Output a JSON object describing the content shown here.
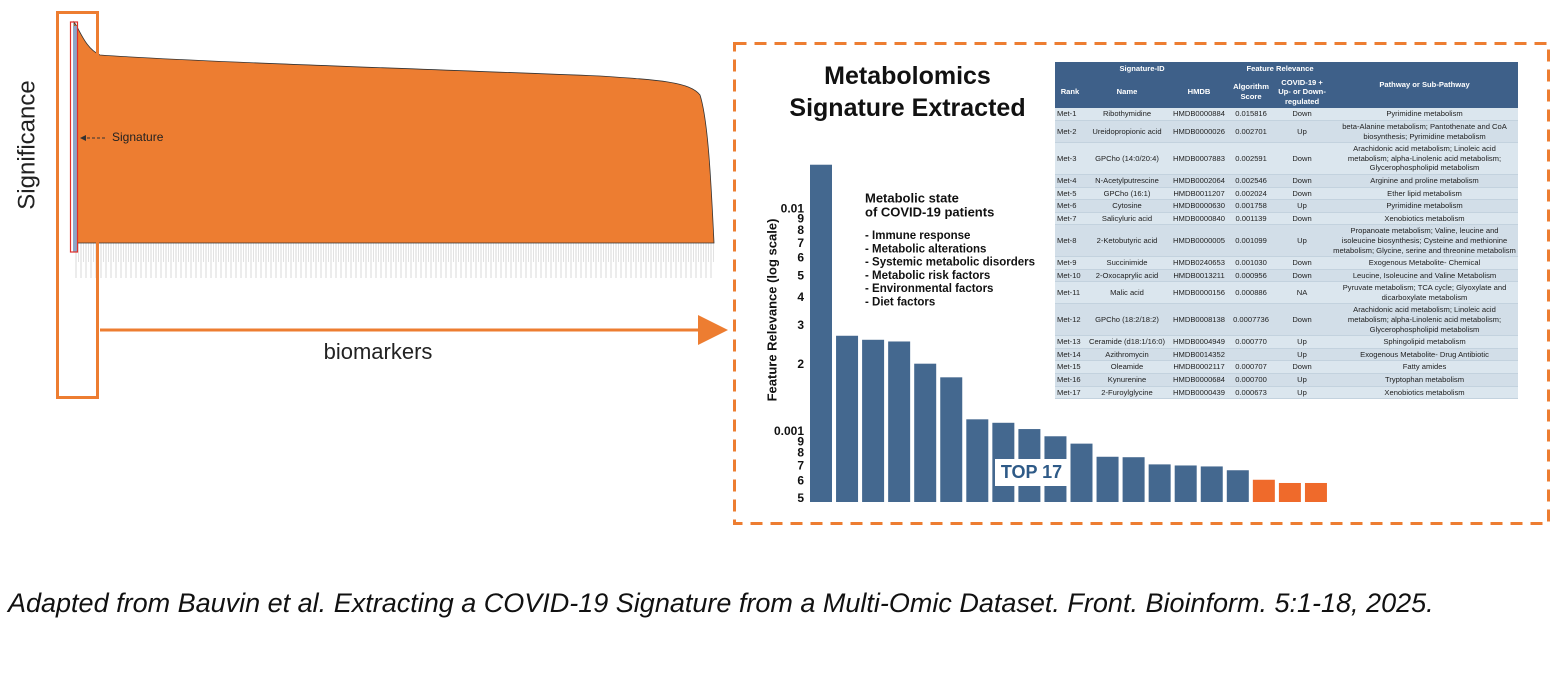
{
  "overview": {
    "y_label": "Significance",
    "x_label": "biomarkers",
    "annotation": "Signature"
  },
  "chart_data": {
    "type": "bar",
    "title": "Metabolomics Signature Extracted",
    "y_label": "Feature Relevance (log scale)",
    "log_scale": true,
    "values": [
      0.015816,
      0.002701,
      0.002591,
      0.002546,
      0.002024,
      0.001758,
      0.001139,
      0.001099,
      0.00103,
      0.000956,
      0.000886,
      0.0007736,
      0.00077,
      0.000715,
      0.000707,
      0.0007,
      0.000673,
      0.00061,
      0.00059,
      0.00059
    ],
    "colors": [
      "#44688f",
      "#44688f",
      "#44688f",
      "#44688f",
      "#44688f",
      "#44688f",
      "#44688f",
      "#44688f",
      "#44688f",
      "#44688f",
      "#44688f",
      "#44688f",
      "#44688f",
      "#44688f",
      "#44688f",
      "#44688f",
      "#44688f",
      "#ef6a2b",
      "#ef6a2b",
      "#ef6a2b"
    ],
    "ylim": [
      0.0005,
      0.02
    ],
    "yticks": [
      0.01,
      {
        "value": 0.009,
        "label": "9"
      },
      {
        "value": 0.008,
        "label": "8"
      },
      {
        "value": 0.007,
        "label": "7"
      },
      {
        "value": 0.006,
        "label": "6"
      },
      {
        "value": 0.005,
        "label": "5"
      },
      {
        "value": 0.004,
        "label": "4"
      },
      {
        "value": 0.003,
        "label": "3"
      },
      {
        "value": 0.002,
        "label": "2"
      },
      0.001,
      {
        "value": 0.0009,
        "label": "9"
      },
      {
        "value": 0.0008,
        "label": "8"
      },
      {
        "value": 0.0007,
        "label": "7"
      },
      {
        "value": 0.0006,
        "label": "6"
      },
      {
        "value": 0.0005,
        "label": "5"
      }
    ],
    "annotation_title": [
      "Metabolic state",
      "of COVID-19 patients"
    ],
    "annotation_items": [
      "- Immune response",
      "- Metabolic alterations",
      "- Systemic metabolic disorders",
      "- Metabolic risk factors",
      "- Environmental factors",
      "- Diet factors"
    ],
    "highlight_label": "TOP 17"
  },
  "table": {
    "group_header": [
      "Signature-ID",
      "Feature Relevance",
      "Pathway or Sub-Pathway"
    ],
    "header": [
      "Rank",
      "Name",
      "HMDB",
      "Algorithm Score",
      "COVID-19 + Up- or Down-regulated"
    ],
    "rows": [
      [
        "Met-1",
        "Ribothymidine",
        "HMDB0000884",
        "0.015816",
        "Down",
        "Pyrimidine metabolism"
      ],
      [
        "Met-2",
        "Ureidopropionic acid",
        "HMDB0000026",
        "0.002701",
        "Up",
        "beta-Alanine metabolism; Pantothenate and CoA biosynthesis; Pyrimidine metabolism"
      ],
      [
        "Met-3",
        "GPCho (14:0/20:4)",
        "HMDB0007883",
        "0.002591",
        "Down",
        "Arachidonic acid metabolism; Linoleic acid metabolism; alpha-Linolenic acid metabolism; Glycerophospholipid metabolism"
      ],
      [
        "Met-4",
        "N-Acetylputrescine",
        "HMDB0002064",
        "0.002546",
        "Down",
        "Arginine and proline metabolism"
      ],
      [
        "Met-5",
        "GPCho (16:1)",
        "HMDB0011207",
        "0.002024",
        "Down",
        "Ether lipid metabolism"
      ],
      [
        "Met-6",
        "Cytosine",
        "HMDB0000630",
        "0.001758",
        "Up",
        "Pyrimidine metabolism"
      ],
      [
        "Met-7",
        "Salicyluric acid",
        "HMDB0000840",
        "0.001139",
        "Down",
        "Xenobiotics metabolism"
      ],
      [
        "Met-8",
        "2-Ketobutyric acid",
        "HMDB0000005",
        "0.001099",
        "Up",
        "Propanoate metabolism; Valine, leucine and isoleucine biosynthesis; Cysteine and methionine metabolism; Glycine, serine and threonine metabolism"
      ],
      [
        "Met-9",
        "Succinimide",
        "HMDB0240653",
        "0.001030",
        "Down",
        "Exogenous Metabolite- Chemical"
      ],
      [
        "Met-10",
        "2-Oxocaprylic acid",
        "HMDB0013211",
        "0.000956",
        "Down",
        "Leucine, Isoleucine and Valine Metabolism"
      ],
      [
        "Met-11",
        "Malic acid",
        "HMDB0000156",
        "0.000886",
        "NA",
        "Pyruvate metabolism; TCA cycle; Glyoxylate and dicarboxylate metabolism"
      ],
      [
        "Met-12",
        "GPCho (18:2/18:2)",
        "HMDB0008138",
        "0.0007736",
        "Down",
        "Arachidonic acid metabolism; Linoleic acid metabolism; alpha-Linolenic acid metabolism; Glycerophospholipid metabolism"
      ],
      [
        "Met-13",
        "Ceramide (d18:1/16:0)",
        "HMDB0004949",
        "0.000770",
        "Up",
        "Sphingolipid metabolism"
      ],
      [
        "Met-14",
        "Azithromycin",
        "HMDB0014352",
        null,
        "Up",
        "Exogenous Metabolite- Drug Antibiotic"
      ],
      [
        "Met-15",
        "Oleamide",
        "HMDB0002117",
        "0.000707",
        "Down",
        "Fatty amides"
      ],
      [
        "Met-16",
        "Kynurenine",
        "HMDB0000684",
        "0.000700",
        "Up",
        "Tryptophan metabolism"
      ],
      [
        "Met-17",
        "2-Furoylglycine",
        "HMDB0000439",
        "0.000673",
        "Up",
        "Xenobiotics metabolism"
      ]
    ]
  },
  "caption": "Adapted from Bauvin et al. Extracting a COVID-19 Signature from a Multi-Omic Dataset. Front. Bioinform. 5:1-18, 2025."
}
